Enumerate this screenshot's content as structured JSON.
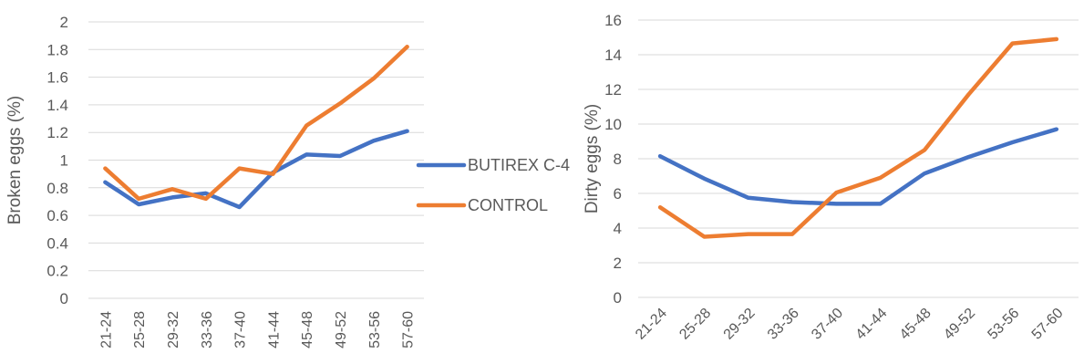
{
  "colors": {
    "butirex": "#4472C4",
    "control": "#ED7D31",
    "grid": "#D9D9D9",
    "text": "#595959"
  },
  "chart_data": [
    {
      "type": "line",
      "categories": [
        "21-24",
        "25-28",
        "29-32",
        "33-36",
        "37-40",
        "41-44",
        "45-48",
        "49-52",
        "53-56",
        "57-60"
      ],
      "ylabel": "Broken eggs (%)",
      "xlabel": "",
      "ylim": [
        0,
        2
      ],
      "yticks": [
        "0",
        "0.2",
        "0.4",
        "0.6",
        "0.8",
        "1",
        "1.2",
        "1.4",
        "1.6",
        "1.8",
        "2"
      ],
      "grid": true,
      "legend": "right",
      "series": [
        {
          "name": "BUTIREX C-4",
          "values": [
            0.84,
            0.68,
            0.73,
            0.76,
            0.66,
            0.91,
            1.04,
            1.03,
            1.14,
            1.21
          ]
        },
        {
          "name": "CONTROL",
          "values": [
            0.94,
            0.72,
            0.79,
            0.72,
            0.94,
            0.9,
            1.25,
            1.41,
            1.59,
            1.82
          ]
        }
      ]
    },
    {
      "type": "line",
      "categories": [
        "21-24",
        "25-28",
        "29-32",
        "33-36",
        "37-40",
        "41-44",
        "45-48",
        "49-52",
        "53-56",
        "57-60"
      ],
      "ylabel": "Dirty eggs (%)",
      "xlabel": "",
      "ylim": [
        0,
        16
      ],
      "yticks": [
        "0",
        "2",
        "4",
        "6",
        "8",
        "10",
        "12",
        "14",
        "16"
      ],
      "grid": true,
      "series": [
        {
          "values": [
            8.15,
            6.85,
            5.75,
            5.5,
            5.4,
            5.4,
            7.15,
            8.1,
            8.95,
            9.7
          ]
        },
        {
          "values": [
            5.2,
            3.5,
            3.65,
            3.65,
            6.05,
            6.9,
            8.5,
            11.7,
            14.65,
            14.9
          ]
        }
      ]
    }
  ]
}
